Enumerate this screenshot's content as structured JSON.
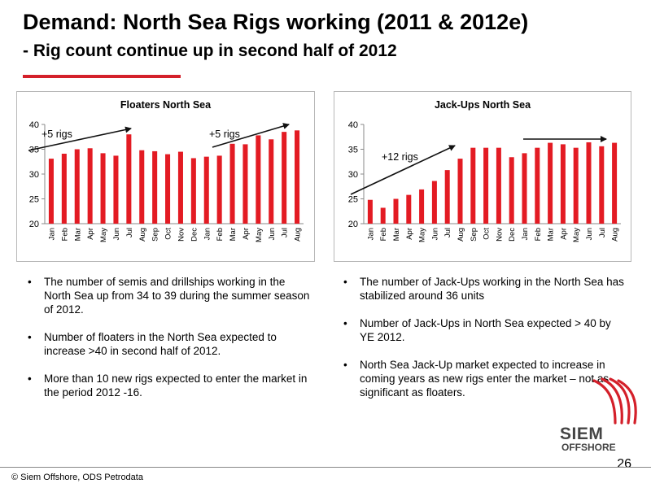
{
  "header": {
    "title": "Demand: North Sea Rigs working (2011 & 2012e)",
    "subtitle": "- Rig count continue up in second half of 2012"
  },
  "chart_data": [
    {
      "type": "bar",
      "title": "Floaters North Sea",
      "categories": [
        "Jan",
        "Feb",
        "Mar",
        "Apr",
        "May",
        "Jun",
        "Jul",
        "Aug",
        "Sep",
        "Oct",
        "Nov",
        "Dec",
        "Jan",
        "Feb",
        "Mar",
        "Apr",
        "May",
        "Jun",
        "Jul",
        "Aug"
      ],
      "values": [
        33.1,
        34.1,
        35.0,
        35.2,
        34.2,
        33.7,
        38.0,
        34.8,
        34.6,
        34.0,
        34.5,
        33.2,
        33.5,
        33.7,
        36.1,
        36.0,
        37.8,
        37.0,
        38.5,
        38.8
      ],
      "ylim": [
        20,
        40
      ],
      "yticks": [
        20,
        25,
        30,
        35,
        40
      ],
      "color": "#e31b23",
      "annotations": [
        "+5 rigs",
        "+5 rigs"
      ]
    },
    {
      "type": "bar",
      "title": "Jack-Ups North Sea",
      "categories": [
        "Jan",
        "Feb",
        "Mar",
        "Apr",
        "May",
        "Jun",
        "Jul",
        "Aug",
        "Sep",
        "Oct",
        "Nov",
        "Dec",
        "Jan",
        "Feb",
        "Mar",
        "Apr",
        "May",
        "Jun",
        "Jul",
        "Aug"
      ],
      "values": [
        24.8,
        23.2,
        25.0,
        25.8,
        26.9,
        28.6,
        30.8,
        33.1,
        35.3,
        35.3,
        35.3,
        33.4,
        34.2,
        35.3,
        36.3,
        36.0,
        35.3,
        36.4,
        35.6,
        36.3
      ],
      "ylim": [
        20,
        40
      ],
      "yticks": [
        20,
        25,
        30,
        35,
        40
      ],
      "color": "#e31b23",
      "annotations": [
        "+12 rigs"
      ]
    }
  ],
  "left_bullets": [
    "The number of semis and drillships working in the North Sea up from 34 to 39 during the summer season of 2012.",
    "Number of floaters in the North Sea expected to increase >40 in second half of 2012.",
    "More than 10 new rigs expected to enter the market in the period 2012 -16."
  ],
  "right_bullets": [
    "The number of Jack-Ups working in the North Sea has stabilized around 36 units",
    "Number of Jack-Ups in North Sea expected > 40 by YE 2012.",
    "North Sea Jack-Up market expected to increase in coming years as new rigs enter   the market – not as significant as floaters."
  ],
  "footer": {
    "source": "© Siem Offshore, ODS Petrodata",
    "page": "26"
  },
  "logo": {
    "name": "SIEM",
    "sub": "OFFSHORE",
    "color": "#d4202a"
  }
}
